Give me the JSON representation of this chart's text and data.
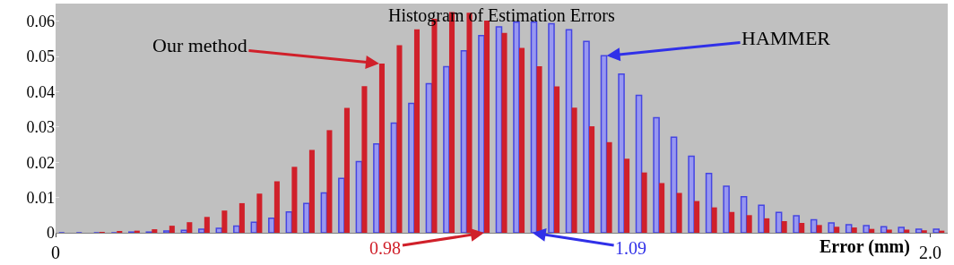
{
  "chart_data": {
    "type": "histogram",
    "title": "Histogram of Estimation Errors",
    "xlabel": "Error (mm)",
    "bins": [
      0,
      0.04,
      0.08,
      0.12,
      0.16,
      0.2,
      0.24,
      0.28,
      0.32,
      0.36,
      0.4,
      0.44,
      0.48,
      0.52,
      0.56,
      0.6,
      0.64,
      0.68,
      0.72,
      0.76,
      0.8,
      0.84,
      0.88,
      0.92,
      0.96,
      1.0,
      1.04,
      1.08,
      1.12,
      1.16,
      1.2,
      1.24,
      1.28,
      1.32,
      1.36,
      1.4,
      1.44,
      1.48,
      1.52,
      1.56,
      1.6,
      1.64,
      1.68,
      1.72,
      1.76,
      1.8,
      1.84,
      1.88,
      1.92,
      1.96,
      2.0,
      2.04
    ],
    "series": [
      {
        "color": "#3030e8",
        "values": [
          0,
          0,
          0,
          0,
          0.0002,
          0.0002,
          0.0005,
          0.0007,
          0.001,
          0.0013,
          0.0019,
          0.003,
          0.0041,
          0.0059,
          0.0083,
          0.0113,
          0.0154,
          0.0202,
          0.0252,
          0.0311,
          0.0367,
          0.0423,
          0.0471,
          0.0516,
          0.0559,
          0.0584,
          0.0597,
          0.0597,
          0.0593,
          0.0576,
          0.0543,
          0.0502,
          0.045,
          0.039,
          0.0326,
          0.0271,
          0.0217,
          0.0168,
          0.0132,
          0.0102,
          0.0078,
          0.0058,
          0.0048,
          0.0037,
          0.0028,
          0.0023,
          0.002,
          0.0017,
          0.0015,
          0.001,
          0.001
        ]
      },
      {
        "color": "#d0202a",
        "values": [
          0,
          0,
          0.0002,
          0.0003,
          0.0006,
          0.001,
          0.002,
          0.003,
          0.0045,
          0.0063,
          0.0084,
          0.0111,
          0.0146,
          0.0187,
          0.0235,
          0.0291,
          0.0354,
          0.0416,
          0.048,
          0.0532,
          0.0577,
          0.0607,
          0.0626,
          0.0624,
          0.0602,
          0.0567,
          0.0524,
          0.0472,
          0.0415,
          0.0355,
          0.0302,
          0.0257,
          0.021,
          0.0171,
          0.0141,
          0.0113,
          0.009,
          0.0072,
          0.0059,
          0.005,
          0.0041,
          0.0033,
          0.0028,
          0.0022,
          0.0017,
          0.0015,
          0.0011,
          0.0009,
          0.0009,
          0.0007,
          0.0006
        ]
      }
    ],
    "annotations": [
      {
        "text": "HAMMER",
        "x": 1.26,
        "y": 0.0502
      },
      {
        "text": "Our method",
        "x": 0.74,
        "y": 0.048
      },
      {
        "text": "1.09",
        "x": 1.09,
        "y": 0
      },
      {
        "text": "0.98",
        "x": 0.98,
        "y": 0
      }
    ],
    "xlim": [
      0,
      2.04
    ],
    "xticks": [
      0,
      {
        "value": 2.0,
        "label": "2.0"
      }
    ],
    "ylim": [
      0,
      0.065
    ],
    "yticks": [
      0,
      0.01,
      0.02,
      0.03,
      0.04,
      0.05,
      0.06
    ]
  }
}
